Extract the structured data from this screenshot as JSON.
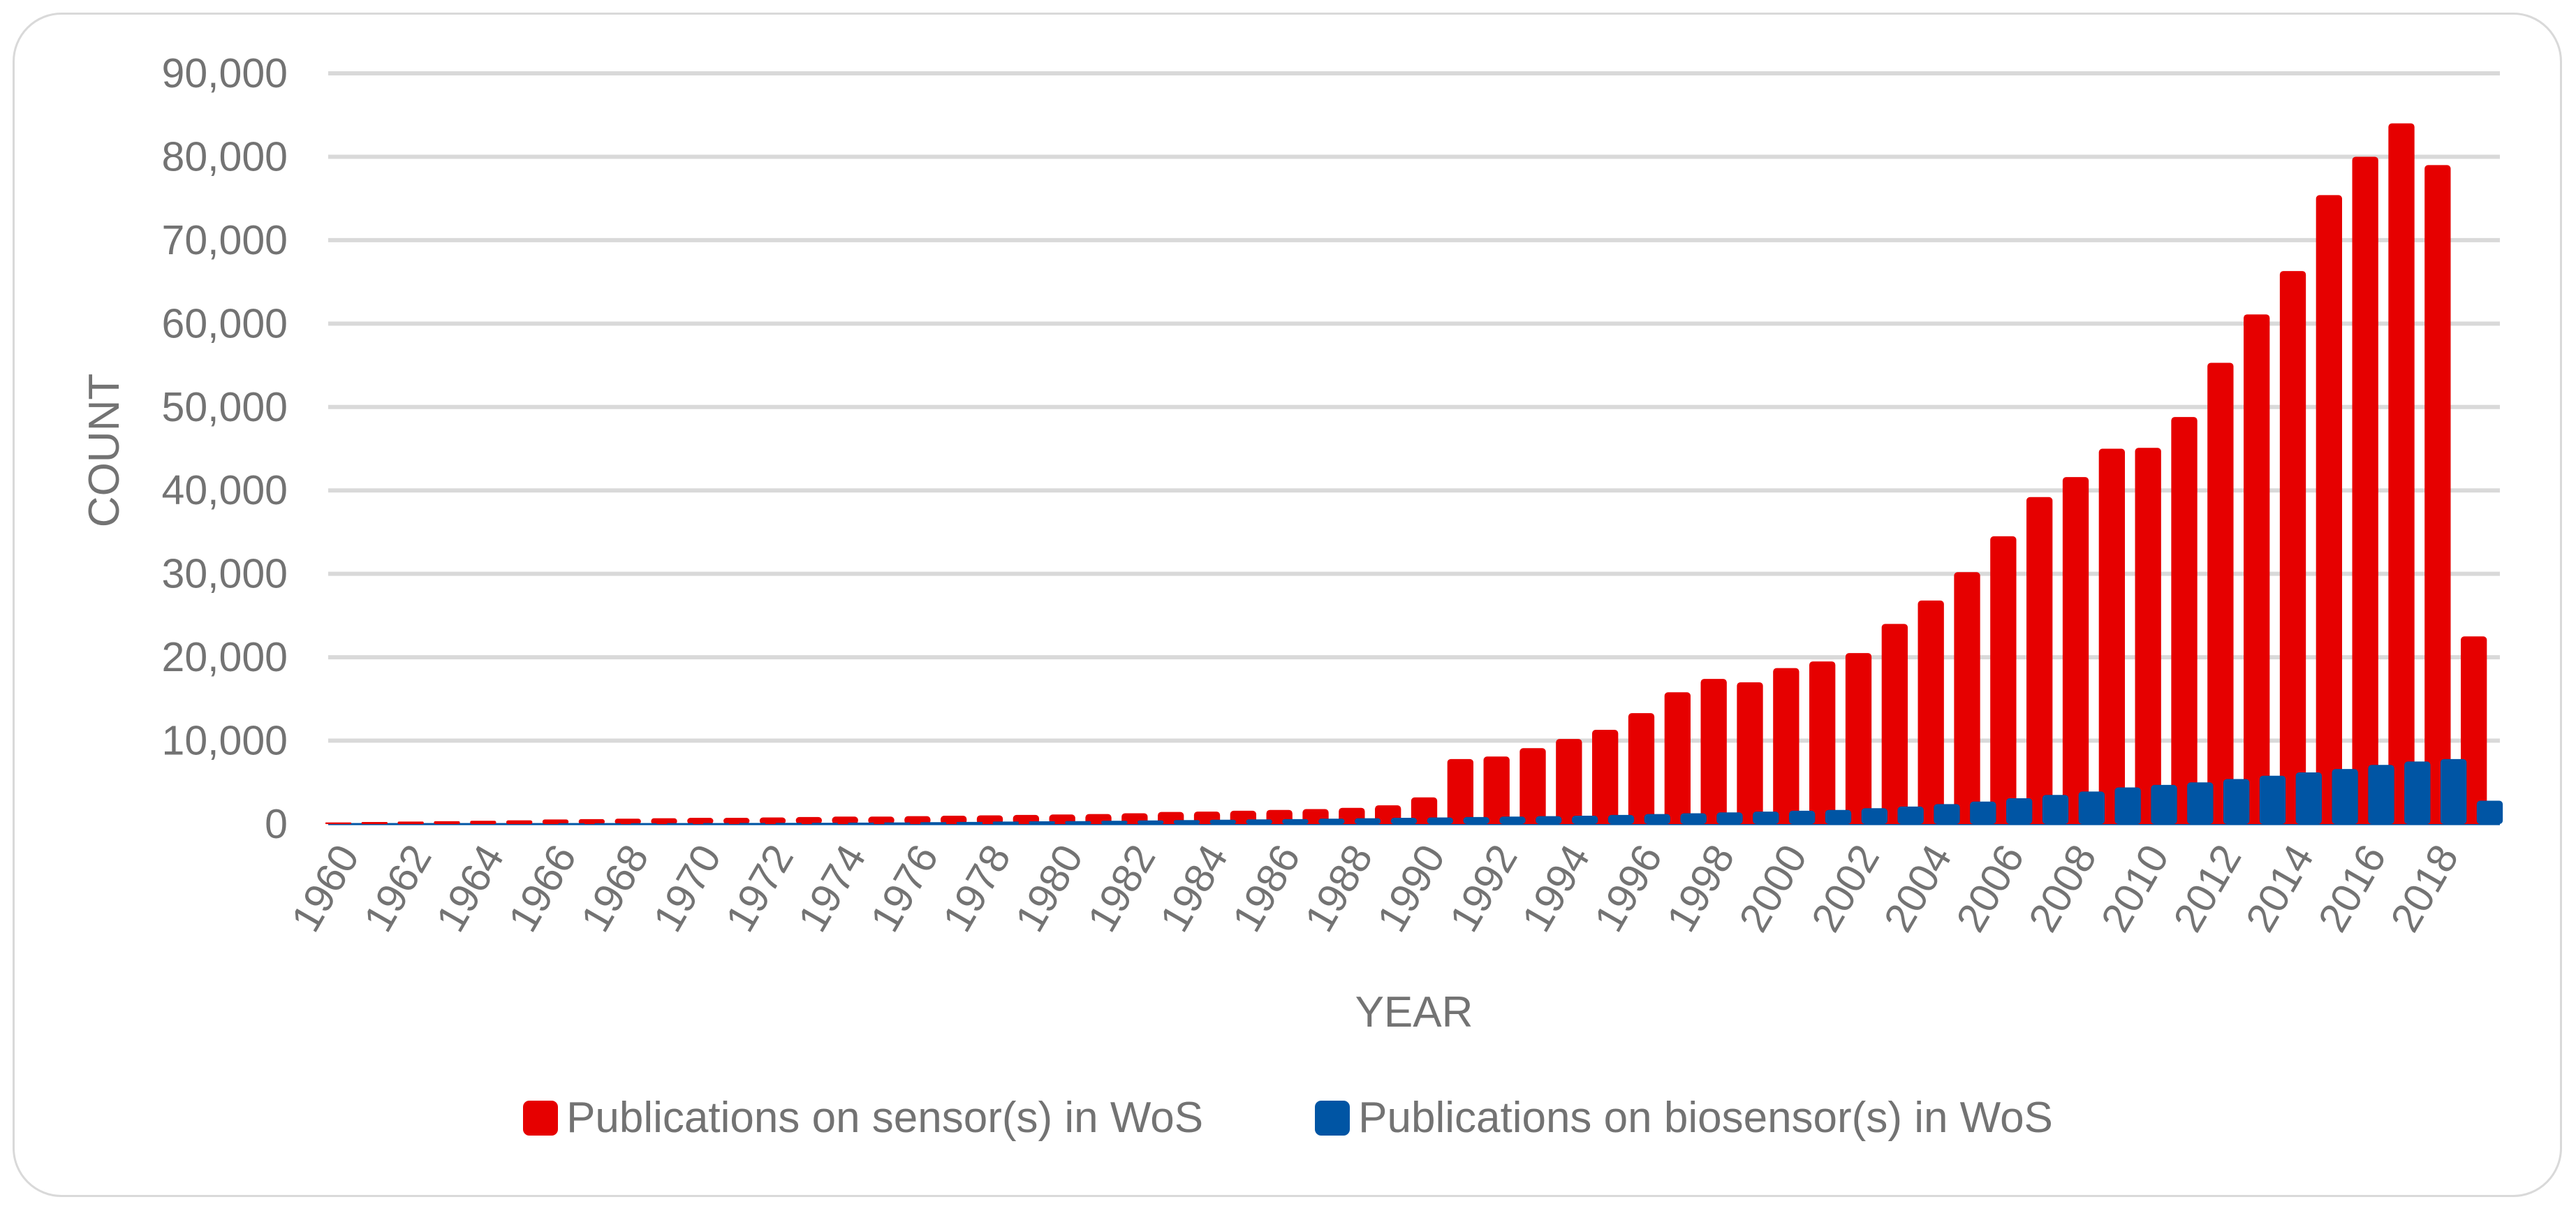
{
  "chart_data": {
    "type": "bar",
    "title": "",
    "xlabel": "YEAR",
    "ylabel": "COUNT",
    "ylim": [
      0,
      90000
    ],
    "yticks": [
      "0",
      "10,000",
      "20,000",
      "30,000",
      "40,000",
      "50,000",
      "60,000",
      "70,000",
      "80,000",
      "90,000"
    ],
    "xtick_labels": [
      "1960",
      "1962",
      "1964",
      "1966",
      "1968",
      "1970",
      "1972",
      "1974",
      "1976",
      "1978",
      "1980",
      "1982",
      "1984",
      "1986",
      "1988",
      "1990",
      "1992",
      "1994",
      "1996",
      "1998",
      "2000",
      "2002",
      "2004",
      "2006",
      "2008",
      "2010",
      "2012",
      "2014",
      "2016",
      "2018"
    ],
    "grid": true,
    "legend_position": "bottom",
    "categories": [
      "1960",
      "1961",
      "1962",
      "1963",
      "1964",
      "1965",
      "1966",
      "1967",
      "1968",
      "1969",
      "1970",
      "1971",
      "1972",
      "1973",
      "1974",
      "1975",
      "1976",
      "1977",
      "1978",
      "1979",
      "1980",
      "1981",
      "1982",
      "1983",
      "1984",
      "1985",
      "1986",
      "1987",
      "1988",
      "1989",
      "1990",
      "1991",
      "1992",
      "1993",
      "1994",
      "1995",
      "1996",
      "1997",
      "1998",
      "1999",
      "2000",
      "2001",
      "2002",
      "2003",
      "2004",
      "2005",
      "2006",
      "2007",
      "2008",
      "2009",
      "2010",
      "2011",
      "2012",
      "2013",
      "2014",
      "2015",
      "2016",
      "2017",
      "2018",
      "2019"
    ],
    "series": [
      {
        "name": "Publications on sensor(s) in WoS",
        "color": "#e60000",
        "values": [
          200,
          250,
          300,
          350,
          400,
          450,
          550,
          600,
          650,
          700,
          750,
          750,
          800,
          850,
          900,
          900,
          950,
          1000,
          1050,
          1100,
          1150,
          1200,
          1300,
          1450,
          1500,
          1600,
          1700,
          1800,
          1950,
          2250,
          3200,
          7800,
          8100,
          9100,
          10200,
          11300,
          13300,
          15800,
          17400,
          17000,
          18700,
          19500,
          20500,
          24000,
          26800,
          30200,
          34500,
          39200,
          41600,
          45000,
          45100,
          48800,
          55300,
          61100,
          66300,
          75400,
          80000,
          84000,
          79000,
          22500
        ]
      },
      {
        "name": "Publications on biosensor(s) in WoS",
        "color": "#0055a4",
        "values": [
          0,
          0,
          0,
          0,
          0,
          0,
          100,
          100,
          100,
          120,
          130,
          140,
          150,
          160,
          180,
          200,
          230,
          260,
          300,
          330,
          360,
          400,
          440,
          480,
          520,
          560,
          600,
          650,
          700,
          750,
          800,
          850,
          900,
          950,
          1000,
          1100,
          1200,
          1300,
          1400,
          1500,
          1600,
          1700,
          1900,
          2100,
          2400,
          2700,
          3100,
          3500,
          3900,
          4400,
          4700,
          5000,
          5400,
          5800,
          6200,
          6600,
          7100,
          7500,
          7800,
          2800
        ]
      }
    ]
  }
}
